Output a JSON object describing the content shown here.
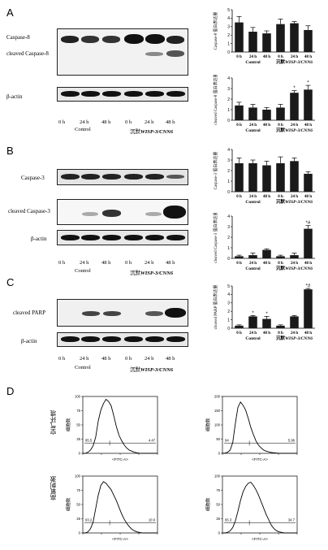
{
  "panels": {
    "A": {
      "letter": "A",
      "blot_labels": [
        "Caspase-8",
        "cleaved Caspase-8",
        "β-actin"
      ],
      "lanes": [
        "0 h",
        "24 h",
        "48 h",
        "0 h",
        "24 h",
        "48 h"
      ],
      "groups": [
        "Control",
        "沉默",
        "WISP-3/CNN6"
      ]
    },
    "B": {
      "letter": "B",
      "blot_labels": [
        "Caspase-3",
        "cleaved Caspase-3",
        "β-actin"
      ],
      "lanes": [
        "0 h",
        "24 h",
        "48 h",
        "0 h",
        "24 h",
        "48 h"
      ],
      "groups": [
        "Control",
        "沉默",
        "WISP-3/CNN6"
      ]
    },
    "C": {
      "letter": "C",
      "blot_labels": [
        "cleaved PARP",
        "β-actin"
      ],
      "lanes": [
        "0 h",
        "24 h",
        "48 h",
        "0 h",
        "24 h",
        "48 h"
      ],
      "groups": [
        "Control",
        "沉默",
        "WISP-3/CNN6"
      ]
    },
    "D": {
      "letter": "D",
      "cond_labels": [
        "空气环境",
        "高氧刺激"
      ],
      "ylabel": "细胞数",
      "xlabel": "<FITC-A>",
      "gates": [
        [
          "95.5",
          "4.47"
        ],
        [
          "94",
          "5.96"
        ],
        [
          "93.2",
          "10.9"
        ],
        [
          "65.3",
          "34.7"
        ]
      ]
    }
  },
  "chart_data": [
    {
      "type": "bar",
      "id": "A-top",
      "categories": [
        "0 h",
        "24 h",
        "48 h",
        "0 h",
        "24 h",
        "48 h"
      ],
      "values": [
        3.5,
        2.4,
        2.2,
        3.3,
        3.4,
        2.6
      ],
      "errors": [
        0.7,
        0.5,
        0.3,
        0.6,
        0.2,
        0.5
      ],
      "ylabel": "Caspase-8 蛋白表达量",
      "ylim": [
        0,
        5
      ],
      "yticks": [
        "0",
        "1",
        "2",
        "3",
        "4",
        "5"
      ],
      "stars": [
        "",
        "",
        "",
        "",
        "",
        ""
      ],
      "groups": [
        "Control",
        "沉默",
        "WISP-3/CNN6"
      ]
    },
    {
      "type": "bar",
      "id": "A-bottom",
      "categories": [
        "0 h",
        "24 h",
        "48 h",
        "0 h",
        "24 h",
        "48 h"
      ],
      "values": [
        1.4,
        1.2,
        1.0,
        1.2,
        2.6,
        2.9
      ],
      "errors": [
        0.3,
        0.3,
        0.2,
        0.3,
        0.2,
        0.4
      ],
      "ylabel": "cleaved Caspase-8 蛋白表达量",
      "ylim": [
        0,
        4
      ],
      "yticks": [
        "0",
        "1",
        "2",
        "3",
        "4"
      ],
      "stars": [
        "",
        "",
        "",
        "",
        "*",
        "*"
      ],
      "groups": [
        "Control",
        "沉默",
        "WISP-3/CNN6"
      ]
    },
    {
      "type": "bar",
      "id": "B-top",
      "categories": [
        "0 h",
        "24 h",
        "48 h",
        "0 h",
        "24 h",
        "48 h"
      ],
      "values": [
        2.7,
        2.7,
        2.5,
        2.7,
        2.9,
        1.7
      ],
      "errors": [
        0.5,
        0.3,
        0.4,
        0.6,
        0.3,
        0.2
      ],
      "ylabel": "Caspase-3 蛋白表达量",
      "ylim": [
        0,
        4
      ],
      "yticks": [
        "0",
        "1",
        "2",
        "3",
        "4"
      ],
      "stars": [
        "",
        "",
        "",
        "",
        "",
        ""
      ],
      "groups": [
        "Control",
        "沉默",
        "WISP-3/CNN6"
      ]
    },
    {
      "type": "bar",
      "id": "B-bottom",
      "categories": [
        "0 h",
        "24 h",
        "48 h",
        "0 h",
        "24 h",
        "48 h"
      ],
      "values": [
        0.2,
        0.3,
        0.8,
        0.2,
        0.3,
        2.8
      ],
      "errors": [
        0.1,
        0.2,
        0.1,
        0.1,
        0.2,
        0.3
      ],
      "ylabel": "cleaved Caspase-3 蛋白表达量",
      "ylim": [
        0,
        4
      ],
      "yticks": [
        "0",
        "1",
        "2",
        "3",
        "4"
      ],
      "stars": [
        "",
        "",
        "",
        "",
        "",
        "*#"
      ],
      "groups": [
        "Control",
        "沉默",
        "WISP-3/CNN6"
      ]
    },
    {
      "type": "bar",
      "id": "C",
      "categories": [
        "0 h",
        "24 h",
        "48 h",
        "0 h",
        "24 h",
        "48 h"
      ],
      "values": [
        0.3,
        1.4,
        1.1,
        0.3,
        1.4,
        4.6
      ],
      "errors": [
        0.1,
        0.1,
        0.3,
        0.1,
        0.1,
        0.1
      ],
      "ylabel": "cleaved PARP 蛋白表达量",
      "ylim": [
        0,
        5
      ],
      "yticks": [
        "0",
        "1",
        "2",
        "3",
        "4",
        "5"
      ],
      "stars": [
        "",
        "*",
        "*",
        "",
        "",
        "*#"
      ],
      "groups": [
        "Control",
        "沉默",
        "WISP-3/CNN6"
      ]
    }
  ]
}
